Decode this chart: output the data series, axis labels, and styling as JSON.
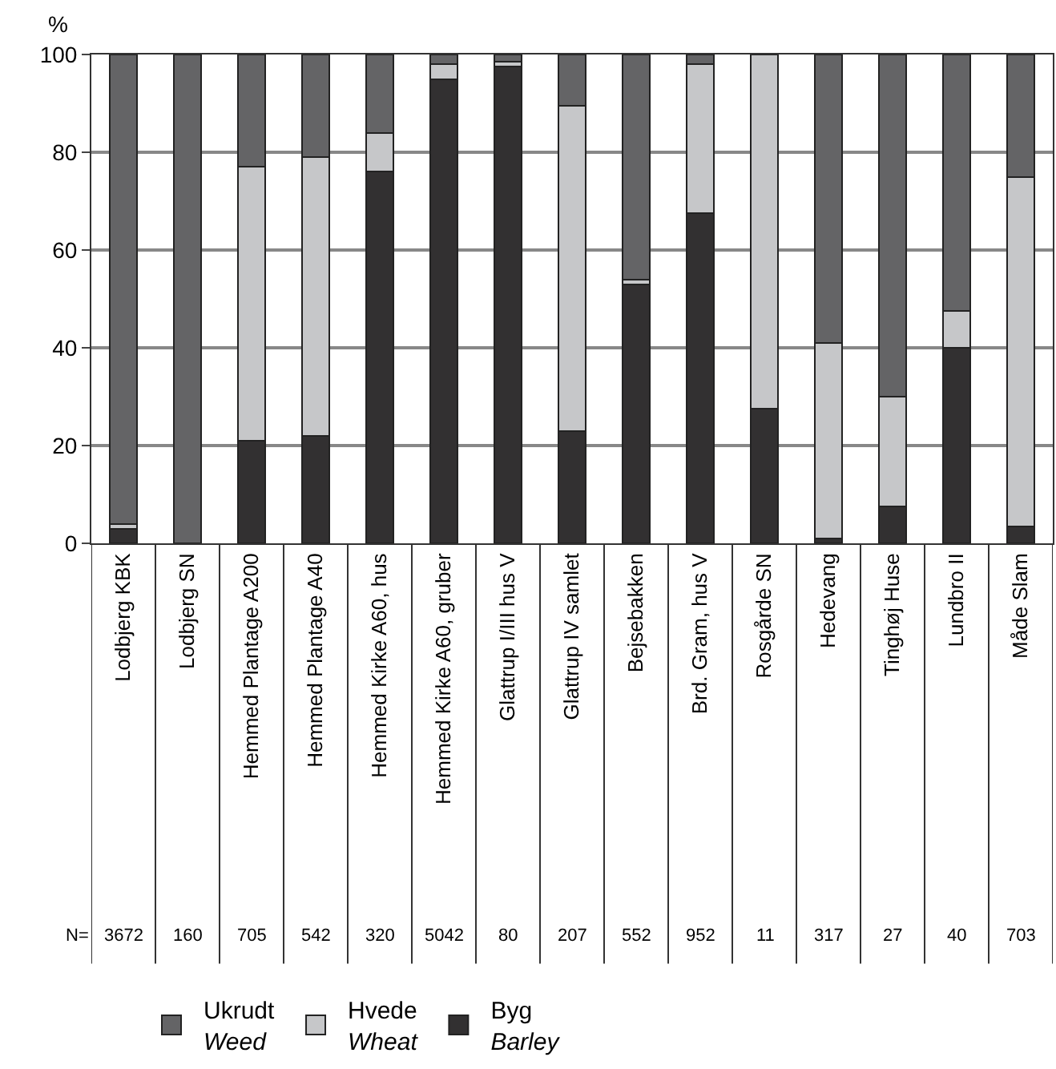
{
  "chart_data": {
    "type": "bar",
    "stacked": true,
    "ylabel": "%",
    "categories": [
      "Lodbjerg KBK",
      "Lodbjerg SN",
      "Hemmed Plantage A200",
      "Hemmed Plantage A40",
      "Hemmed Kirke A60, hus",
      "Hemmed Kirke A60, gruber",
      "Glattrup I/III hus V",
      "Glattrup IV samlet",
      "Bejsebakken",
      "Brd. Gram, hus V",
      "Rosgårde SN",
      "Hedevang",
      "Tinghøj Huse",
      "Lundbro II",
      "Måde Slam"
    ],
    "series": [
      {
        "name": "Byg\nBarley",
        "color": "#323031",
        "values": [
          3,
          0,
          21,
          22,
          76,
          95,
          97.5,
          23,
          53,
          67.5,
          27.5,
          1,
          7.5,
          40,
          3.5
        ]
      },
      {
        "name": "Hvede\nWheat",
        "color": "#c6c7c9",
        "values": [
          1,
          0,
          56,
          57,
          8,
          3,
          1,
          66.5,
          1,
          30.5,
          72.5,
          40,
          22.5,
          7.5,
          71.5
        ]
      },
      {
        "name": "Ukrudt\nWeed",
        "color": "#646466",
        "values": [
          96,
          100,
          23,
          21,
          16,
          2,
          1.5,
          10.5,
          46,
          2,
          0,
          59,
          70,
          52.5,
          25
        ]
      }
    ],
    "ylim": [
      0,
      100
    ],
    "yticks": [
      0,
      20,
      40,
      60,
      80,
      100
    ],
    "grid": "y",
    "legend": "bottom left",
    "annotations": [
      "N=",
      "3672",
      "160",
      "705",
      "542",
      "320",
      "5042",
      "80",
      "207",
      "552",
      "952",
      "11",
      "317",
      "27",
      "40",
      "703"
    ]
  }
}
